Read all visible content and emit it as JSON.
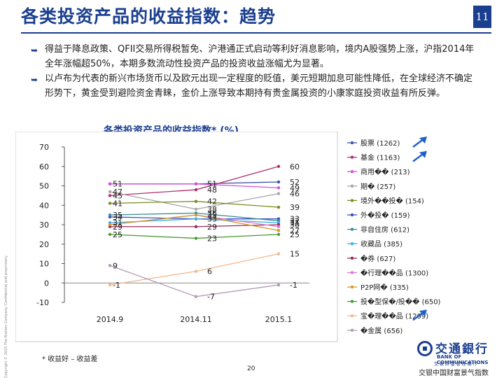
{
  "slide": {
    "title": "各类投资产品的收益指数：趋势",
    "page_badge": "11",
    "bullets": [
      "得益于降息政策、QFII交易所得税暂免、沪港通正式启动等利好消息影响，境内A股强势上涨，沪指2014年全年涨幅超50%，本期多数流动性投资产品的投资收益涨幅尤为显著。",
      "以卢布为代表的新兴市场货币以及欧元出现一定程度的贬值，美元短期加息可能性降低，在全球经济不确定形势下，黄金受到避险资金青睐，金价上涨导致本期持有贵金属投资的小康家庭投资收益有所反弹。"
    ],
    "chart_heading": "各类投资产品的收益指数* (%)",
    "footnote": "* 收益好 – 收益差",
    "page_number": "20",
    "sidebar_note": "Copyright © 2015 The Nielsen Company. Confidential and proprietary.",
    "logo": {
      "name_cn": "交通銀行",
      "name_en": "BANK OF COMMUNICATIONS",
      "sub": "交 银 财 富 管 理 银 行",
      "tagline": "交银中国财富景气指数"
    }
  },
  "chart_data": {
    "type": "line",
    "title": "各类投资产品的收益指数* (%)",
    "categories": [
      "2014.9",
      "2014.11",
      "2015.1"
    ],
    "ylim": [
      -10,
      70
    ],
    "yticks": [
      -10,
      0,
      10,
      20,
      30,
      40,
      50,
      60,
      70
    ],
    "grid": false,
    "legend_position": "right",
    "series": [
      {
        "name": "股票 (1262)",
        "color": "#3b55a8",
        "values": [
          51,
          51,
          52
        ]
      },
      {
        "name": "基金 (1163)",
        "color": "#b0306a",
        "values": [
          45,
          48,
          60
        ]
      },
      {
        "name": "商用�� (213)",
        "color": "#d94fd9",
        "values": [
          51,
          51,
          49
        ]
      },
      {
        "name": "期� (257)",
        "color": "#a8a8a8",
        "values": [
          47,
          38,
          46
        ]
      },
      {
        "name": "境外��投� (154)",
        "color": "#7a8d22",
        "values": [
          41,
          42,
          39
        ]
      },
      {
        "name": "外�投� (159)",
        "color": "#3b4ec0",
        "values": [
          34,
          33,
          33
        ]
      },
      {
        "name": "非自住房 (612)",
        "color": "#3a8e96",
        "values": [
          35,
          36,
          32
        ]
      },
      {
        "name": "收藏品 (385)",
        "color": "#3ab0e8",
        "values": [
          31,
          33,
          31
        ]
      },
      {
        "name": "�券 (627)",
        "color": "#9a2b5a",
        "values": [
          29,
          29,
          30
        ]
      },
      {
        "name": "�行理��品 (1300)",
        "color": "#e078d0",
        "values": [
          30,
          35,
          29
        ]
      },
      {
        "name": "P2P网� (335)",
        "color": "#d49a26",
        "values": [
          30,
          35,
          27
        ]
      },
      {
        "name": "投�型保�/投�� (650)",
        "color": "#4a9a36",
        "values": [
          25,
          23,
          25
        ]
      },
      {
        "name": "宝�理��品 (1299)",
        "color": "#f2b88e",
        "values": [
          -1,
          6,
          15
        ]
      },
      {
        "name": "�金属 (656)",
        "color": "#b49ab4",
        "values": [
          9,
          -7,
          -1
        ]
      }
    ],
    "data_labels": [
      {
        "cat": 0,
        "text": "51",
        "v": 51
      },
      {
        "cat": 0,
        "text": "47",
        "v": 47
      },
      {
        "cat": 0,
        "text": "45",
        "v": 45
      },
      {
        "cat": 0,
        "text": "41",
        "v": 41
      },
      {
        "cat": 0,
        "text": "35",
        "v": 35
      },
      {
        "cat": 0,
        "text": "34",
        "v": 34
      },
      {
        "cat": 0,
        "text": "31",
        "v": 31
      },
      {
        "cat": 0,
        "text": "29",
        "v": 29
      },
      {
        "cat": 0,
        "text": "25",
        "v": 25
      },
      {
        "cat": 0,
        "text": "9",
        "v": 9
      },
      {
        "cat": 0,
        "text": "-1",
        "v": -1
      },
      {
        "cat": 1,
        "text": "51",
        "v": 51
      },
      {
        "cat": 1,
        "text": "48",
        "v": 48
      },
      {
        "cat": 1,
        "text": "42",
        "v": 42
      },
      {
        "cat": 1,
        "text": "38",
        "v": 38
      },
      {
        "cat": 1,
        "text": "36",
        "v": 36
      },
      {
        "cat": 1,
        "text": "35",
        "v": 35
      },
      {
        "cat": 1,
        "text": "33",
        "v": 33
      },
      {
        "cat": 1,
        "text": "29",
        "v": 29
      },
      {
        "cat": 1,
        "text": "23",
        "v": 23
      },
      {
        "cat": 1,
        "text": "6",
        "v": 6
      },
      {
        "cat": 1,
        "text": "-7",
        "v": -7
      },
      {
        "cat": 2,
        "text": "60",
        "v": 60
      },
      {
        "cat": 2,
        "text": "52",
        "v": 52
      },
      {
        "cat": 2,
        "text": "49",
        "v": 49
      },
      {
        "cat": 2,
        "text": "46",
        "v": 46
      },
      {
        "cat": 2,
        "text": "39",
        "v": 39
      },
      {
        "cat": 2,
        "text": "33",
        "v": 33
      },
      {
        "cat": 2,
        "text": "32",
        "v": 32
      },
      {
        "cat": 2,
        "text": "31",
        "v": 31
      },
      {
        "cat": 2,
        "text": "30",
        "v": 30
      },
      {
        "cat": 2,
        "text": "27",
        "v": 27
      },
      {
        "cat": 2,
        "text": "25",
        "v": 25
      },
      {
        "cat": 2,
        "text": "15",
        "v": 15
      },
      {
        "cat": 2,
        "text": "-1",
        "v": -1
      }
    ],
    "trend_arrows": [
      "股票 (1262)",
      "基金 (1163)",
      "宝�理��品 (1299)"
    ],
    "arrow_color": "#1f63c9"
  }
}
